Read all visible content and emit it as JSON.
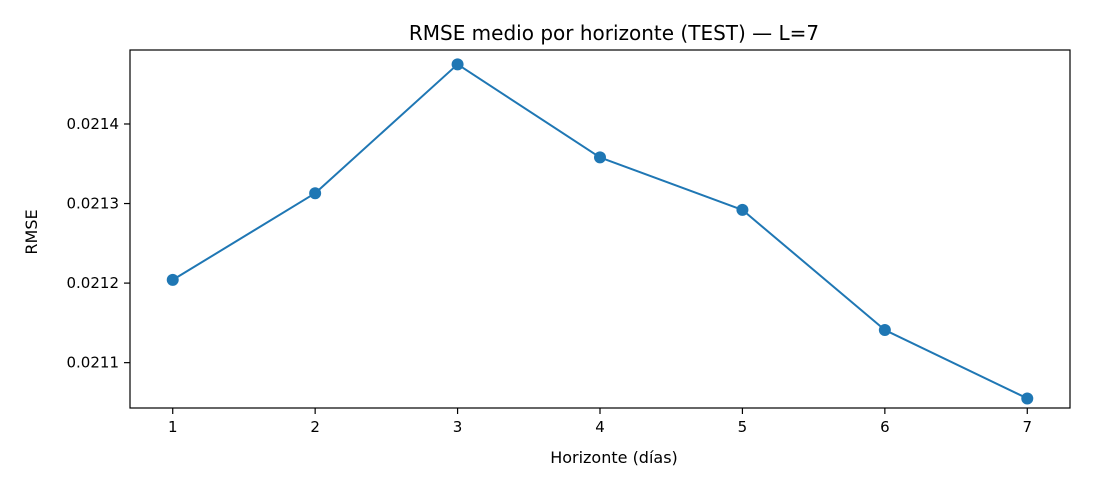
{
  "chart_data": {
    "type": "line",
    "title": "RMSE medio por horizonte (TEST) — L=7",
    "xlabel": "Horizonte (días)",
    "ylabel": "RMSE",
    "x": [
      1,
      2,
      3,
      4,
      5,
      6,
      7
    ],
    "xticks": [
      "1",
      "2",
      "3",
      "4",
      "5",
      "6",
      "7"
    ],
    "yticks": [
      "0.0211",
      "0.0212",
      "0.0213",
      "0.0214"
    ],
    "ytick_values": [
      0.0211,
      0.0212,
      0.0213,
      0.0214
    ],
    "xlim": [
      0.7,
      7.3
    ],
    "ylim": [
      0.021043,
      0.021493
    ],
    "grid": false,
    "series": [
      {
        "values": [
          0.021204,
          0.021313,
          0.021475,
          0.021358,
          0.021292,
          0.021141,
          0.021055
        ],
        "color": "#1f77b4",
        "marker": "circle"
      }
    ]
  }
}
